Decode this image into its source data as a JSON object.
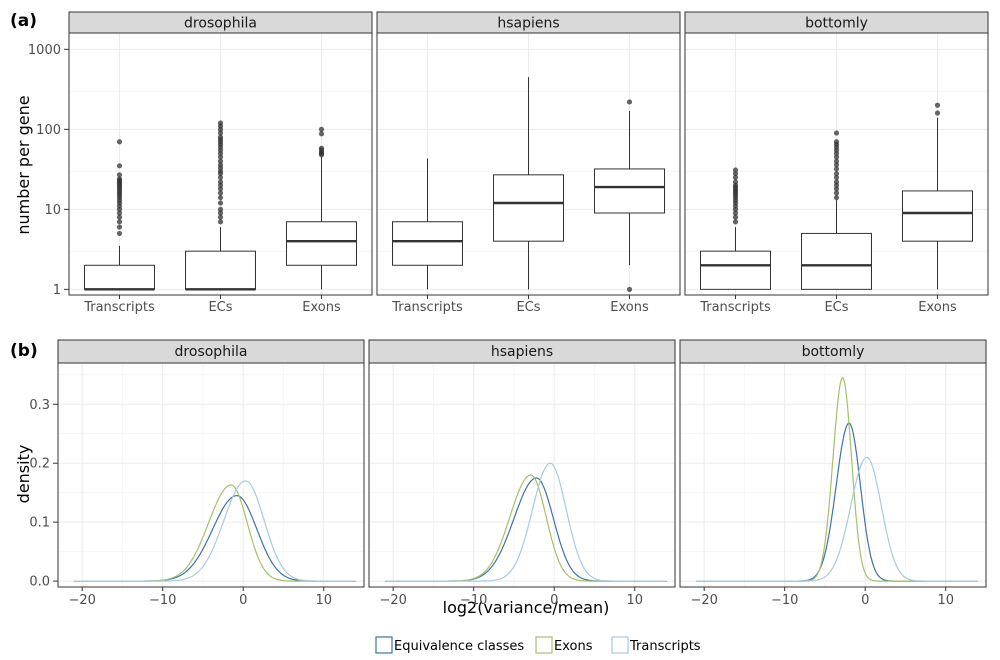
{
  "panel_tags": {
    "a": "(a)",
    "b": "(b)"
  },
  "colors": {
    "Equivalence classes": "#3E73A8",
    "Exons": "#A6C06A",
    "Transcripts": "#A8CBE0",
    "box_line": "#333333",
    "strip_fill": "#D9D9D9",
    "grid": "#EBEBEB"
  },
  "chart_data": [
    {
      "type": "box",
      "facets": [
        "drosophila",
        "hsapiens",
        "bottomly"
      ],
      "categories": [
        "Transcripts",
        "ECs",
        "Exons"
      ],
      "ylabel": "number per gene",
      "xlabel": "",
      "yscale": "log10",
      "ylim": [
        0.85,
        1600
      ],
      "yticks": [
        1,
        10,
        100,
        1000
      ],
      "yticklabels": [
        "1",
        "10",
        "100",
        "1000"
      ],
      "grid": true,
      "boxes": {
        "drosophila": [
          {
            "category": "Transcripts",
            "min": 1,
            "q1": 1,
            "median": 1,
            "q3": 2,
            "max": 3.5,
            "outliers": [
              5,
              6,
              7,
              8,
              9,
              10,
              11,
              12,
              13,
              14,
              15,
              16,
              17,
              18,
              19,
              20,
              21,
              22,
              23,
              24,
              27,
              35,
              70
            ]
          },
          {
            "category": "ECs",
            "min": 1,
            "q1": 1,
            "median": 1,
            "q3": 3,
            "max": 6,
            "outliers": [
              7,
              8,
              9,
              10,
              12,
              14,
              16,
              18,
              20,
              22,
              25,
              28,
              30,
              33,
              36,
              40,
              45,
              50,
              55,
              60,
              65,
              70,
              75,
              80,
              90,
              100,
              110,
              120
            ]
          },
          {
            "category": "Exons",
            "min": 1,
            "q1": 2,
            "median": 4,
            "q3": 7,
            "max": 45,
            "outliers": [
              48,
              50,
              52,
              55,
              58,
              88,
              100
            ]
          }
        ],
        "hsapiens": [
          {
            "category": "Transcripts",
            "min": 1,
            "q1": 2,
            "median": 4,
            "q3": 7,
            "max": 43,
            "outliers": []
          },
          {
            "category": "ECs",
            "min": 1,
            "q1": 4,
            "median": 12,
            "q3": 27,
            "max": 450,
            "outliers": []
          },
          {
            "category": "Exons",
            "min": 2,
            "q1": 9,
            "median": 19,
            "q3": 32,
            "max": 170,
            "outliers": [
              1,
              220
            ]
          }
        ],
        "bottomly": [
          {
            "category": "Transcripts",
            "min": 1,
            "q1": 1,
            "median": 2,
            "q3": 3,
            "max": 6,
            "outliers": [
              7,
              8,
              9,
              10,
              11,
              12,
              13,
              14,
              15,
              16,
              17,
              18,
              19,
              20,
              22,
              25,
              28,
              31
            ]
          },
          {
            "category": "ECs",
            "min": 1,
            "q1": 1,
            "median": 2,
            "q3": 5,
            "max": 13,
            "outliers": [
              14,
              16,
              18,
              20,
              22,
              25,
              28,
              32,
              36,
              40,
              45,
              50,
              55,
              60,
              65,
              70,
              90
            ]
          },
          {
            "category": "Exons",
            "min": 1,
            "q1": 4,
            "median": 9,
            "q3": 17,
            "max": 140,
            "outliers": [
              160,
              200
            ]
          }
        ]
      }
    },
    {
      "type": "line",
      "subtype": "density",
      "facets": [
        "drosophila",
        "hsapiens",
        "bottomly"
      ],
      "xlabel": "log2(variance/mean)",
      "ylabel": "density",
      "xlim": [
        -23,
        15
      ],
      "ylim": [
        -0.01,
        0.37
      ],
      "xticks": [
        -20,
        -10,
        0,
        10
      ],
      "xticklabels": [
        "−20",
        "−10",
        "0",
        "10"
      ],
      "yticks": [
        0.0,
        0.1,
        0.2,
        0.3
      ],
      "yticklabels": [
        "0.0",
        "0.1",
        "0.2",
        "0.3"
      ],
      "x_range_of_curves": [
        -21,
        14
      ],
      "grid": true,
      "legend": {
        "placement": "bottom",
        "entries": [
          "Equivalence classes",
          "Exons",
          "Transcripts"
        ]
      },
      "series": {
        "drosophila": [
          {
            "name": "Equivalence classes",
            "mean": -0.8,
            "sd_left": 3.0,
            "sd_right": 2.5,
            "peak": 0.145
          },
          {
            "name": "Exons",
            "mean": -1.5,
            "sd_left": 2.8,
            "sd_right": 2.0,
            "peak": 0.163
          },
          {
            "name": "Transcripts",
            "mean": 0.3,
            "sd_left": 2.7,
            "sd_right": 2.3,
            "peak": 0.17
          }
        ],
        "hsapiens": [
          {
            "name": "Equivalence classes",
            "mean": -2.2,
            "sd_left": 2.8,
            "sd_right": 2.1,
            "peak": 0.175
          },
          {
            "name": "Exons",
            "mean": -2.9,
            "sd_left": 2.6,
            "sd_right": 1.9,
            "peak": 0.18
          },
          {
            "name": "Transcripts",
            "mean": -0.5,
            "sd_left": 2.2,
            "sd_right": 2.0,
            "peak": 0.2
          }
        ],
        "bottomly": [
          {
            "name": "Equivalence classes",
            "mean": -2.0,
            "sd_left": 1.6,
            "sd_right": 1.4,
            "peak": 0.268
          },
          {
            "name": "Exons",
            "mean": -2.8,
            "sd_left": 1.2,
            "sd_right": 1.1,
            "peak": 0.345
          },
          {
            "name": "Transcripts",
            "mean": 0.2,
            "sd_left": 2.0,
            "sd_right": 1.8,
            "peak": 0.21
          }
        ]
      }
    }
  ]
}
